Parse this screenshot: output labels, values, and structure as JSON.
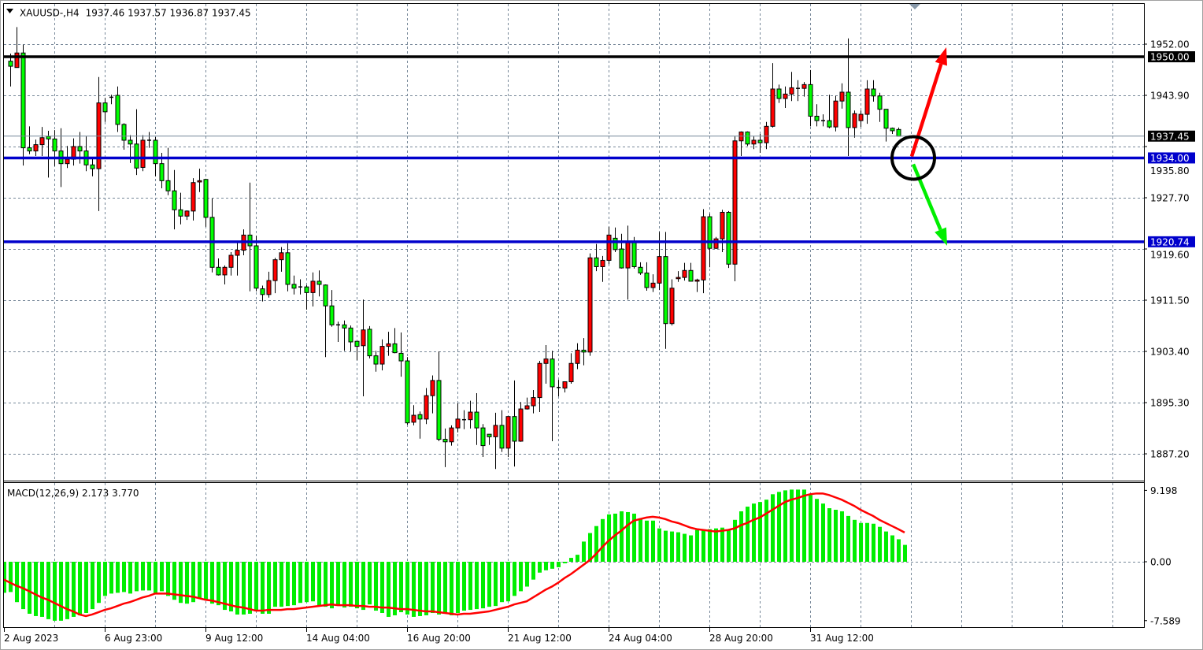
{
  "header": {
    "symbol_timeframe": "XAUUSD-,H4",
    "ohlc_readout": "1937.46 1937.57 1936.87 1937.45"
  },
  "macd_header": {
    "label": "MACD(12,26,9) 2.173 3.770"
  },
  "time_axis": [
    "2 Aug 2023",
    "6 Aug 23:00",
    "9 Aug 12:00",
    "14 Aug 04:00",
    "16 Aug 20:00",
    "21 Aug 12:00",
    "24 Aug 04:00",
    "28 Aug 20:00",
    "31 Aug 12:00"
  ],
  "colors": {
    "bull_candle": "#ff0000",
    "bear_candle": "#00ff00",
    "resistance_line": "#000000",
    "support_line": "#0000cc",
    "bid_line": "#778899",
    "macd_histogram": "#00ee00",
    "macd_signal": "#ff0000",
    "up_arrow": "#ff0000",
    "down_arrow": "#00ee00",
    "grid": "#778899"
  },
  "chart_data": [
    {
      "type": "candlestick",
      "symbol": "XAUUSD-",
      "timeframe": "H4",
      "price_ticks": [
        "1952.00",
        "1943.90",
        "1935.80",
        "1927.70",
        "1919.60",
        "1911.50",
        "1903.40",
        "1895.30",
        "1887.20"
      ],
      "ylim": [
        1881.5,
        1958.5
      ],
      "grid": true,
      "horizontal_lines": [
        {
          "price": 1950.0,
          "label": "1950.00",
          "color": "#000000",
          "kind": "resistance"
        },
        {
          "price": 1937.45,
          "label": "1937.45",
          "color": "#778899",
          "kind": "bid"
        },
        {
          "price": 1934.0,
          "label": "1934.00",
          "color": "#0000cc",
          "kind": "support"
        },
        {
          "price": 1920.74,
          "label": "1920.74",
          "color": "#0000cc",
          "kind": "support"
        }
      ],
      "annotations": [
        {
          "type": "circle",
          "price": 1934.0
        },
        {
          "type": "arrow",
          "direction": "up",
          "from_price": 1934.0,
          "to_price": 1950.0,
          "color": "#ff0000"
        },
        {
          "type": "arrow",
          "direction": "down",
          "from_price": 1934.0,
          "to_price": 1920.74,
          "color": "#00ee00"
        }
      ],
      "ohlc": [
        [
          1949.3,
          1950.5,
          1945.3,
          1948.5
        ],
        [
          1948.3,
          1954.7,
          1948.3,
          1950.6
        ],
        [
          1950.6,
          1951.9,
          1932.8,
          1935.6
        ],
        [
          1935.6,
          1939.0,
          1934.6,
          1935.1
        ],
        [
          1935.1,
          1936.9,
          1934.3,
          1936.1
        ],
        [
          1936.1,
          1938.9,
          1934.3,
          1937.2
        ],
        [
          1937.4,
          1938.3,
          1930.9,
          1937.0
        ],
        [
          1937.0,
          1938.4,
          1932.7,
          1935.1
        ],
        [
          1935.1,
          1938.7,
          1929.4,
          1933.1
        ],
        [
          1933.1,
          1935.9,
          1932.4,
          1933.8
        ],
        [
          1933.8,
          1937.1,
          1932.8,
          1935.8
        ],
        [
          1935.8,
          1938.1,
          1933.1,
          1935.1
        ],
        [
          1935.1,
          1937.4,
          1931.9,
          1932.9
        ],
        [
          1932.9,
          1934.1,
          1931.1,
          1932.3
        ],
        [
          1932.3,
          1946.8,
          1925.6,
          1942.7
        ],
        [
          1942.7,
          1943.5,
          1939.7,
          1941.3
        ],
        [
          1943.6,
          1944.0,
          1942.5,
          1943.6
        ],
        [
          1943.9,
          1945.3,
          1938.1,
          1939.3
        ],
        [
          1939.3,
          1939.5,
          1935.3,
          1936.8
        ],
        [
          1936.8,
          1937.6,
          1933.2,
          1936.2
        ],
        [
          1936.2,
          1941.7,
          1931.3,
          1932.4
        ],
        [
          1932.5,
          1937.6,
          1931.9,
          1936.8
        ],
        [
          1936.8,
          1938.1,
          1935.6,
          1936.8
        ],
        [
          1936.8,
          1937.3,
          1931.1,
          1933.1
        ],
        [
          1933.1,
          1934.8,
          1929.2,
          1930.4
        ],
        [
          1930.4,
          1935.6,
          1928.1,
          1928.8
        ],
        [
          1928.8,
          1932.1,
          1922.7,
          1925.8
        ],
        [
          1925.8,
          1928.5,
          1923.5,
          1924.8
        ],
        [
          1924.8,
          1925.7,
          1924.2,
          1925.6
        ],
        [
          1925.6,
          1930.8,
          1924.1,
          1930.1
        ],
        [
          1930.2,
          1932.3,
          1928.6,
          1930.4
        ],
        [
          1930.6,
          1930.7,
          1923.1,
          1924.6
        ],
        [
          1924.6,
          1927.6,
          1915.9,
          1916.7
        ],
        [
          1916.7,
          1918.1,
          1915.4,
          1915.5
        ],
        [
          1915.5,
          1917.0,
          1914.0,
          1916.7
        ],
        [
          1916.7,
          1919.1,
          1915.4,
          1918.6
        ],
        [
          1918.6,
          1920.9,
          1915.4,
          1919.4
        ],
        [
          1919.4,
          1922.7,
          1918.6,
          1921.8
        ],
        [
          1921.8,
          1930.1,
          1912.9,
          1920.1
        ],
        [
          1920.1,
          1921.7,
          1912.9,
          1913.4
        ],
        [
          1913.3,
          1913.8,
          1911.3,
          1912.4
        ],
        [
          1912.4,
          1916.0,
          1911.9,
          1914.6
        ],
        [
          1914.6,
          1918.2,
          1912.6,
          1917.9
        ],
        [
          1917.9,
          1919.9,
          1916.0,
          1919.0
        ],
        [
          1919.0,
          1920.5,
          1912.9,
          1914.0
        ],
        [
          1914.0,
          1915.4,
          1912.4,
          1913.4
        ],
        [
          1913.6,
          1914.8,
          1912.4,
          1913.6
        ],
        [
          1913.6,
          1913.9,
          1910.0,
          1912.7
        ],
        [
          1912.7,
          1915.9,
          1910.5,
          1914.5
        ],
        [
          1914.5,
          1916.2,
          1912.1,
          1914.0
        ],
        [
          1913.9,
          1914.0,
          1902.5,
          1910.6
        ],
        [
          1910.6,
          1913.1,
          1907.3,
          1907.6
        ],
        [
          1907.6,
          1908.1,
          1904.9,
          1907.6
        ],
        [
          1907.6,
          1908.3,
          1903.5,
          1907.1
        ],
        [
          1907.1,
          1907.5,
          1903.4,
          1904.9
        ],
        [
          1905.0,
          1905.0,
          1902.0,
          1904.2
        ],
        [
          1904.3,
          1911.6,
          1896.3,
          1906.8
        ],
        [
          1906.9,
          1907.4,
          1902.3,
          1902.7
        ],
        [
          1902.7,
          1903.5,
          1900.2,
          1901.4
        ],
        [
          1901.4,
          1905.3,
          1900.4,
          1904.2
        ],
        [
          1904.2,
          1906.5,
          1902.7,
          1904.6
        ],
        [
          1904.6,
          1907.1,
          1903.1,
          1903.2
        ],
        [
          1903.1,
          1906.4,
          1899.4,
          1901.9
        ],
        [
          1901.9,
          1902.5,
          1891.8,
          1892.1
        ],
        [
          1892.2,
          1894.9,
          1891.7,
          1893.3
        ],
        [
          1893.4,
          1893.9,
          1889.6,
          1892.7
        ],
        [
          1892.7,
          1897.6,
          1891.9,
          1896.4
        ],
        [
          1896.4,
          1899.6,
          1893.6,
          1898.8
        ],
        [
          1898.8,
          1903.4,
          1889.2,
          1889.5
        ],
        [
          1889.5,
          1891.2,
          1885.1,
          1889.1
        ],
        [
          1889.1,
          1891.7,
          1888.5,
          1891.3
        ],
        [
          1891.3,
          1895.2,
          1890.6,
          1892.7
        ],
        [
          1892.6,
          1894.1,
          1891.1,
          1892.6
        ],
        [
          1892.6,
          1895.6,
          1891.2,
          1893.8
        ],
        [
          1893.8,
          1896.8,
          1888.6,
          1891.3
        ],
        [
          1891.3,
          1891.9,
          1886.7,
          1888.5
        ],
        [
          1890.3,
          1890.3,
          1888.6,
          1889.9
        ],
        [
          1889.9,
          1893.7,
          1884.8,
          1891.7
        ],
        [
          1891.7,
          1894.1,
          1887.5,
          1888.1
        ],
        [
          1888.1,
          1893.1,
          1886.7,
          1893.1
        ],
        [
          1893.1,
          1898.8,
          1885.2,
          1889.2
        ],
        [
          1889.2,
          1895.4,
          1889.1,
          1894.3
        ],
        [
          1894.3,
          1896.1,
          1894.2,
          1894.8
        ],
        [
          1894.8,
          1897.3,
          1893.6,
          1896.1
        ],
        [
          1896.1,
          1901.9,
          1893.8,
          1901.5
        ],
        [
          1901.5,
          1904.4,
          1898.3,
          1902.2
        ],
        [
          1902.2,
          1903.5,
          1889.2,
          1897.8
        ],
        [
          1897.7,
          1898.9,
          1896.3,
          1897.7
        ],
        [
          1897.6,
          1898.6,
          1896.9,
          1898.6
        ],
        [
          1898.6,
          1903.1,
          1898.3,
          1901.5
        ],
        [
          1901.5,
          1904.7,
          1900.6,
          1903.6
        ],
        [
          1903.6,
          1905.5,
          1901.2,
          1903.3
        ],
        [
          1903.3,
          1918.9,
          1902.7,
          1918.2
        ],
        [
          1918.2,
          1920.4,
          1916.1,
          1916.8
        ],
        [
          1916.8,
          1918.5,
          1914.4,
          1917.8
        ],
        [
          1917.8,
          1923.1,
          1917.2,
          1921.8
        ],
        [
          1921.3,
          1923.0,
          1919.1,
          1919.5
        ],
        [
          1919.6,
          1922.0,
          1916.5,
          1916.6
        ],
        [
          1916.6,
          1923.3,
          1911.6,
          1920.8
        ],
        [
          1920.8,
          1921.5,
          1916.5,
          1916.8
        ],
        [
          1916.7,
          1917.5,
          1915.5,
          1915.8
        ],
        [
          1915.8,
          1917.5,
          1913.0,
          1913.5
        ],
        [
          1913.5,
          1915.6,
          1912.8,
          1914.2
        ],
        [
          1914.2,
          1922.3,
          1913.1,
          1918.4
        ],
        [
          1918.4,
          1922.3,
          1903.8,
          1907.8
        ],
        [
          1907.8,
          1914.8,
          1907.5,
          1913.4
        ],
        [
          1914.9,
          1916.1,
          1914.4,
          1915.1
        ],
        [
          1915.1,
          1917.4,
          1914.6,
          1916.2
        ],
        [
          1916.2,
          1917.4,
          1914.5,
          1914.5
        ],
        [
          1914.5,
          1914.9,
          1912.8,
          1914.7
        ],
        [
          1914.7,
          1925.9,
          1912.6,
          1924.7
        ],
        [
          1924.7,
          1925.2,
          1916.7,
          1919.7
        ],
        [
          1919.7,
          1921.5,
          1919.6,
          1921.2
        ],
        [
          1921.2,
          1925.8,
          1919.1,
          1925.4
        ],
        [
          1925.4,
          1925.6,
          1916.6,
          1917.2
        ],
        [
          1917.2,
          1937.4,
          1914.5,
          1936.7
        ],
        [
          1936.7,
          1938.2,
          1934.3,
          1938.1
        ],
        [
          1938.1,
          1938.2,
          1935.9,
          1936.2
        ],
        [
          1936.2,
          1937.4,
          1935.4,
          1936.8
        ],
        [
          1936.8,
          1937.8,
          1934.8,
          1936.4
        ],
        [
          1936.4,
          1939.7,
          1935.4,
          1939.0
        ],
        [
          1939.0,
          1949.0,
          1938.8,
          1944.9
        ],
        [
          1944.9,
          1945.6,
          1942.7,
          1943.4
        ],
        [
          1943.4,
          1945.3,
          1941.9,
          1944.1
        ],
        [
          1944.1,
          1947.6,
          1943.0,
          1945.1
        ],
        [
          1945.0,
          1946.3,
          1943.0,
          1945.0
        ],
        [
          1945.0,
          1946.0,
          1943.7,
          1945.6
        ],
        [
          1945.6,
          1947.9,
          1939.0,
          1940.6
        ],
        [
          1940.6,
          1942.5,
          1939.0,
          1939.9
        ],
        [
          1939.9,
          1940.9,
          1939.0,
          1939.9
        ],
        [
          1939.9,
          1944.0,
          1938.7,
          1938.9
        ],
        [
          1938.9,
          1943.8,
          1938.2,
          1943.0
        ],
        [
          1943.0,
          1945.8,
          1941.8,
          1944.4
        ],
        [
          1944.4,
          1952.9,
          1934.3,
          1938.8
        ],
        [
          1938.8,
          1941.5,
          1937.2,
          1941.0
        ],
        [
          1939.9,
          1941.5,
          1938.9,
          1940.9
        ],
        [
          1940.9,
          1946.3,
          1939.4,
          1944.9
        ],
        [
          1944.9,
          1946.3,
          1942.9,
          1943.8
        ],
        [
          1943.8,
          1944.3,
          1939.7,
          1941.7
        ],
        [
          1941.7,
          1941.7,
          1936.6,
          1938.7
        ],
        [
          1938.7,
          1938.8,
          1937.8,
          1938.3
        ],
        [
          1938.5,
          1938.8,
          1937.6,
          1937.45
        ]
      ]
    },
    {
      "type": "bar+line",
      "indicator": "MACD(12,26,9)",
      "main_value": 2.173,
      "signal_value": 3.77,
      "ticks": [
        "9.198",
        "0.00",
        "-7.589"
      ],
      "ylim": [
        -7.589,
        9.198
      ],
      "main": [
        -4.0,
        -3.9,
        -5.2,
        -6.1,
        -6.7,
        -7.0,
        -7.1,
        -7.4,
        -7.6,
        -7.6,
        -7.4,
        -7.1,
        -6.9,
        -6.6,
        -6.1,
        -5.3,
        -4.4,
        -4.1,
        -4.0,
        -3.9,
        -4.1,
        -3.8,
        -3.7,
        -3.7,
        -4.1,
        -3.8,
        -4.4,
        -4.9,
        -5.3,
        -5.4,
        -5.2,
        -4.7,
        -4.9,
        -5.4,
        -5.6,
        -6.2,
        -6.4,
        -6.8,
        -6.8,
        -6.7,
        -6.4,
        -6.7,
        -6.7,
        -5.8,
        -5.8,
        -5.7,
        -5.6,
        -5.3,
        -5.2,
        -5.1,
        -5.6,
        -5.8,
        -6.0,
        -5.6,
        -5.9,
        -5.8,
        -6.0,
        -6.2,
        -5.5,
        -6.3,
        -6.6,
        -7.1,
        -6.9,
        -6.5,
        -6.8,
        -7.1,
        -7.0,
        -6.9,
        -6.6,
        -6.8,
        -6.7,
        -6.9,
        -6.6,
        -6.3,
        -6.2,
        -6.1,
        -6.0,
        -5.8,
        -5.7,
        -5.2,
        -5.1,
        -4.4,
        -3.8,
        -3.2,
        -2.3,
        -1.4,
        -1.1,
        -0.9,
        -0.7,
        -0.2,
        0.5,
        0.9,
        2.6,
        3.7,
        4.6,
        5.5,
        6.1,
        6.2,
        6.5,
        6.4,
        6.2,
        5.6,
        5.3,
        5.3,
        4.3,
        4.0,
        3.9,
        3.8,
        3.6,
        3.4,
        4.1,
        4.1,
        4.2,
        4.3,
        4.4,
        4.2,
        5.4,
        6.5,
        7.1,
        7.5,
        7.7,
        8.0,
        8.7,
        9.0,
        9.2,
        9.3,
        9.3,
        9.3,
        8.6,
        8.1,
        7.5,
        6.9,
        6.7,
        6.5,
        5.9,
        5.4,
        5.0,
        5.0,
        4.9,
        4.5,
        3.9,
        3.4,
        2.9,
        2.173
      ],
      "signal": [
        -2.3,
        -2.7,
        -3.1,
        -3.4,
        -3.8,
        -4.2,
        -4.6,
        -4.9,
        -5.3,
        -5.7,
        -6.1,
        -6.4,
        -6.8,
        -7.0,
        -6.8,
        -6.5,
        -6.2,
        -6.0,
        -5.7,
        -5.4,
        -5.2,
        -4.9,
        -4.6,
        -4.4,
        -4.1,
        -4.1,
        -4.1,
        -4.2,
        -4.3,
        -4.4,
        -4.5,
        -4.7,
        -4.9,
        -5.0,
        -5.2,
        -5.4,
        -5.6,
        -5.8,
        -5.9,
        -6.1,
        -6.3,
        -6.3,
        -6.2,
        -6.2,
        -6.2,
        -6.1,
        -6.1,
        -6.0,
        -5.9,
        -5.8,
        -5.7,
        -5.6,
        -5.5,
        -5.6,
        -5.6,
        -5.6,
        -5.7,
        -5.7,
        -5.8,
        -5.8,
        -5.9,
        -5.9,
        -6.0,
        -6.1,
        -6.1,
        -6.2,
        -6.3,
        -6.4,
        -6.4,
        -6.5,
        -6.6,
        -6.7,
        -6.8,
        -6.7,
        -6.7,
        -6.6,
        -6.5,
        -6.4,
        -6.2,
        -6.0,
        -5.8,
        -5.5,
        -5.3,
        -5.1,
        -4.6,
        -4.1,
        -3.6,
        -3.2,
        -2.7,
        -2.1,
        -1.6,
        -1.0,
        -0.4,
        0.2,
        1.0,
        1.9,
        2.7,
        3.4,
        4.0,
        4.7,
        5.3,
        5.5,
        5.7,
        5.8,
        5.7,
        5.5,
        5.2,
        5.0,
        4.7,
        4.4,
        4.2,
        4.1,
        4.0,
        3.9,
        4.0,
        4.1,
        4.3,
        4.7,
        5.0,
        5.4,
        5.7,
        6.2,
        6.7,
        7.2,
        7.7,
        8.0,
        8.2,
        8.5,
        8.7,
        8.8,
        8.8,
        8.6,
        8.3,
        8.0,
        7.6,
        7.2,
        6.7,
        6.3,
        5.9,
        5.4,
        5.0,
        4.6,
        4.2,
        3.77
      ]
    }
  ]
}
